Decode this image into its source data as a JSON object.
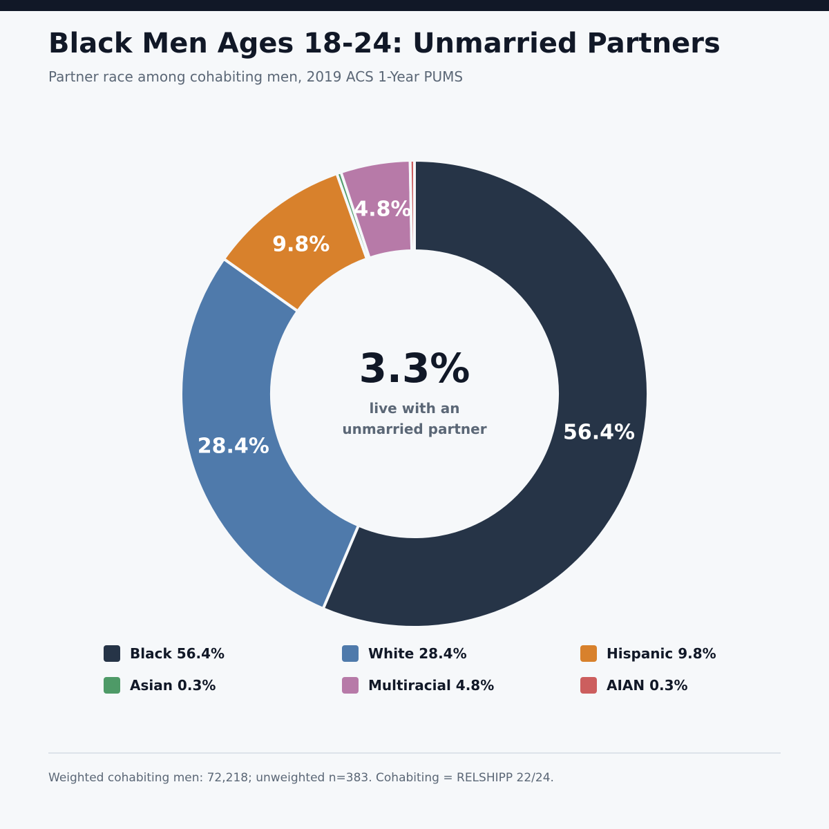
{
  "header": {
    "title": "Black Men Ages 18-24: Unmarried Partners",
    "subtitle": "Partner race among cohabiting men, 2019 ACS 1-Year PUMS"
  },
  "center": {
    "value": "3.3%",
    "line1": "live with an",
    "line2": "unmarried partner"
  },
  "chart_data": {
    "type": "pie",
    "donut": true,
    "categories": [
      "Black",
      "White",
      "Hispanic",
      "Asian",
      "Multiracial",
      "AIAN"
    ],
    "values": [
      56.4,
      28.4,
      9.8,
      0.3,
      4.8,
      0.3
    ],
    "labels": [
      "56.4%",
      "28.4%",
      "9.8%",
      "",
      "4.8%",
      ""
    ],
    "colors": [
      "#263447",
      "#4f7aab",
      "#d8812c",
      "#4e9a67",
      "#b77aa8",
      "#cc5e5e"
    ],
    "legend": [
      "Black 56.4%",
      "White 28.4%",
      "Hispanic 9.8%",
      "Asian 0.3%",
      "Multiracial 4.8%",
      "AIAN 0.3%"
    ],
    "legend_placement": "bottom"
  },
  "footer": {
    "note": "Weighted cohabiting men: 72,218; unweighted n=383. Cohabiting = RELSHIPP 22/24."
  }
}
